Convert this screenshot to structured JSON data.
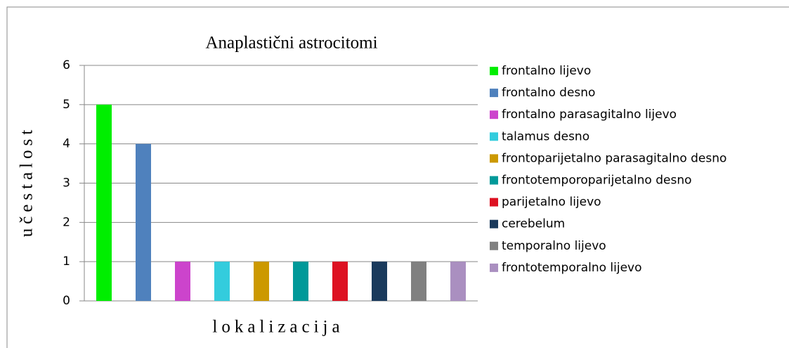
{
  "chart_data": {
    "type": "bar",
    "title": "Anaplastični astrocitomi",
    "xlabel": "lokalizacija",
    "ylabel": "učestalost",
    "categories": [
      null
    ],
    "series": [
      {
        "name": "frontalno lijevo",
        "color": "#00ee00",
        "values": [
          5
        ]
      },
      {
        "name": "frontalno desno",
        "color": "#4f81bd",
        "values": [
          4
        ]
      },
      {
        "name": "frontalno parasagitalno lijevo",
        "color": "#cc44cc",
        "values": [
          1
        ]
      },
      {
        "name": "talamus desno",
        "color": "#33ccdd",
        "values": [
          1
        ]
      },
      {
        "name": "frontoparijetalno parasagitalno desno",
        "color": "#cc9900",
        "values": [
          1
        ]
      },
      {
        "name": "frontotemporoparijetalno desno",
        "color": "#009999",
        "values": [
          1
        ]
      },
      {
        "name": "parijetalno lijevo",
        "color": "#dd1122",
        "values": [
          1
        ]
      },
      {
        "name": "cerebelum",
        "color": "#1a3a5c",
        "values": [
          1
        ]
      },
      {
        "name": "temporalno lijevo",
        "color": "#808080",
        "values": [
          1
        ]
      },
      {
        "name": "frontotemporalno lijevo",
        "color": "#aa8fc0",
        "values": [
          1
        ]
      }
    ],
    "ylim": [
      0,
      6
    ],
    "yticks": [
      0,
      1,
      2,
      3,
      4,
      5,
      6
    ],
    "grid": true,
    "legend": "right"
  }
}
